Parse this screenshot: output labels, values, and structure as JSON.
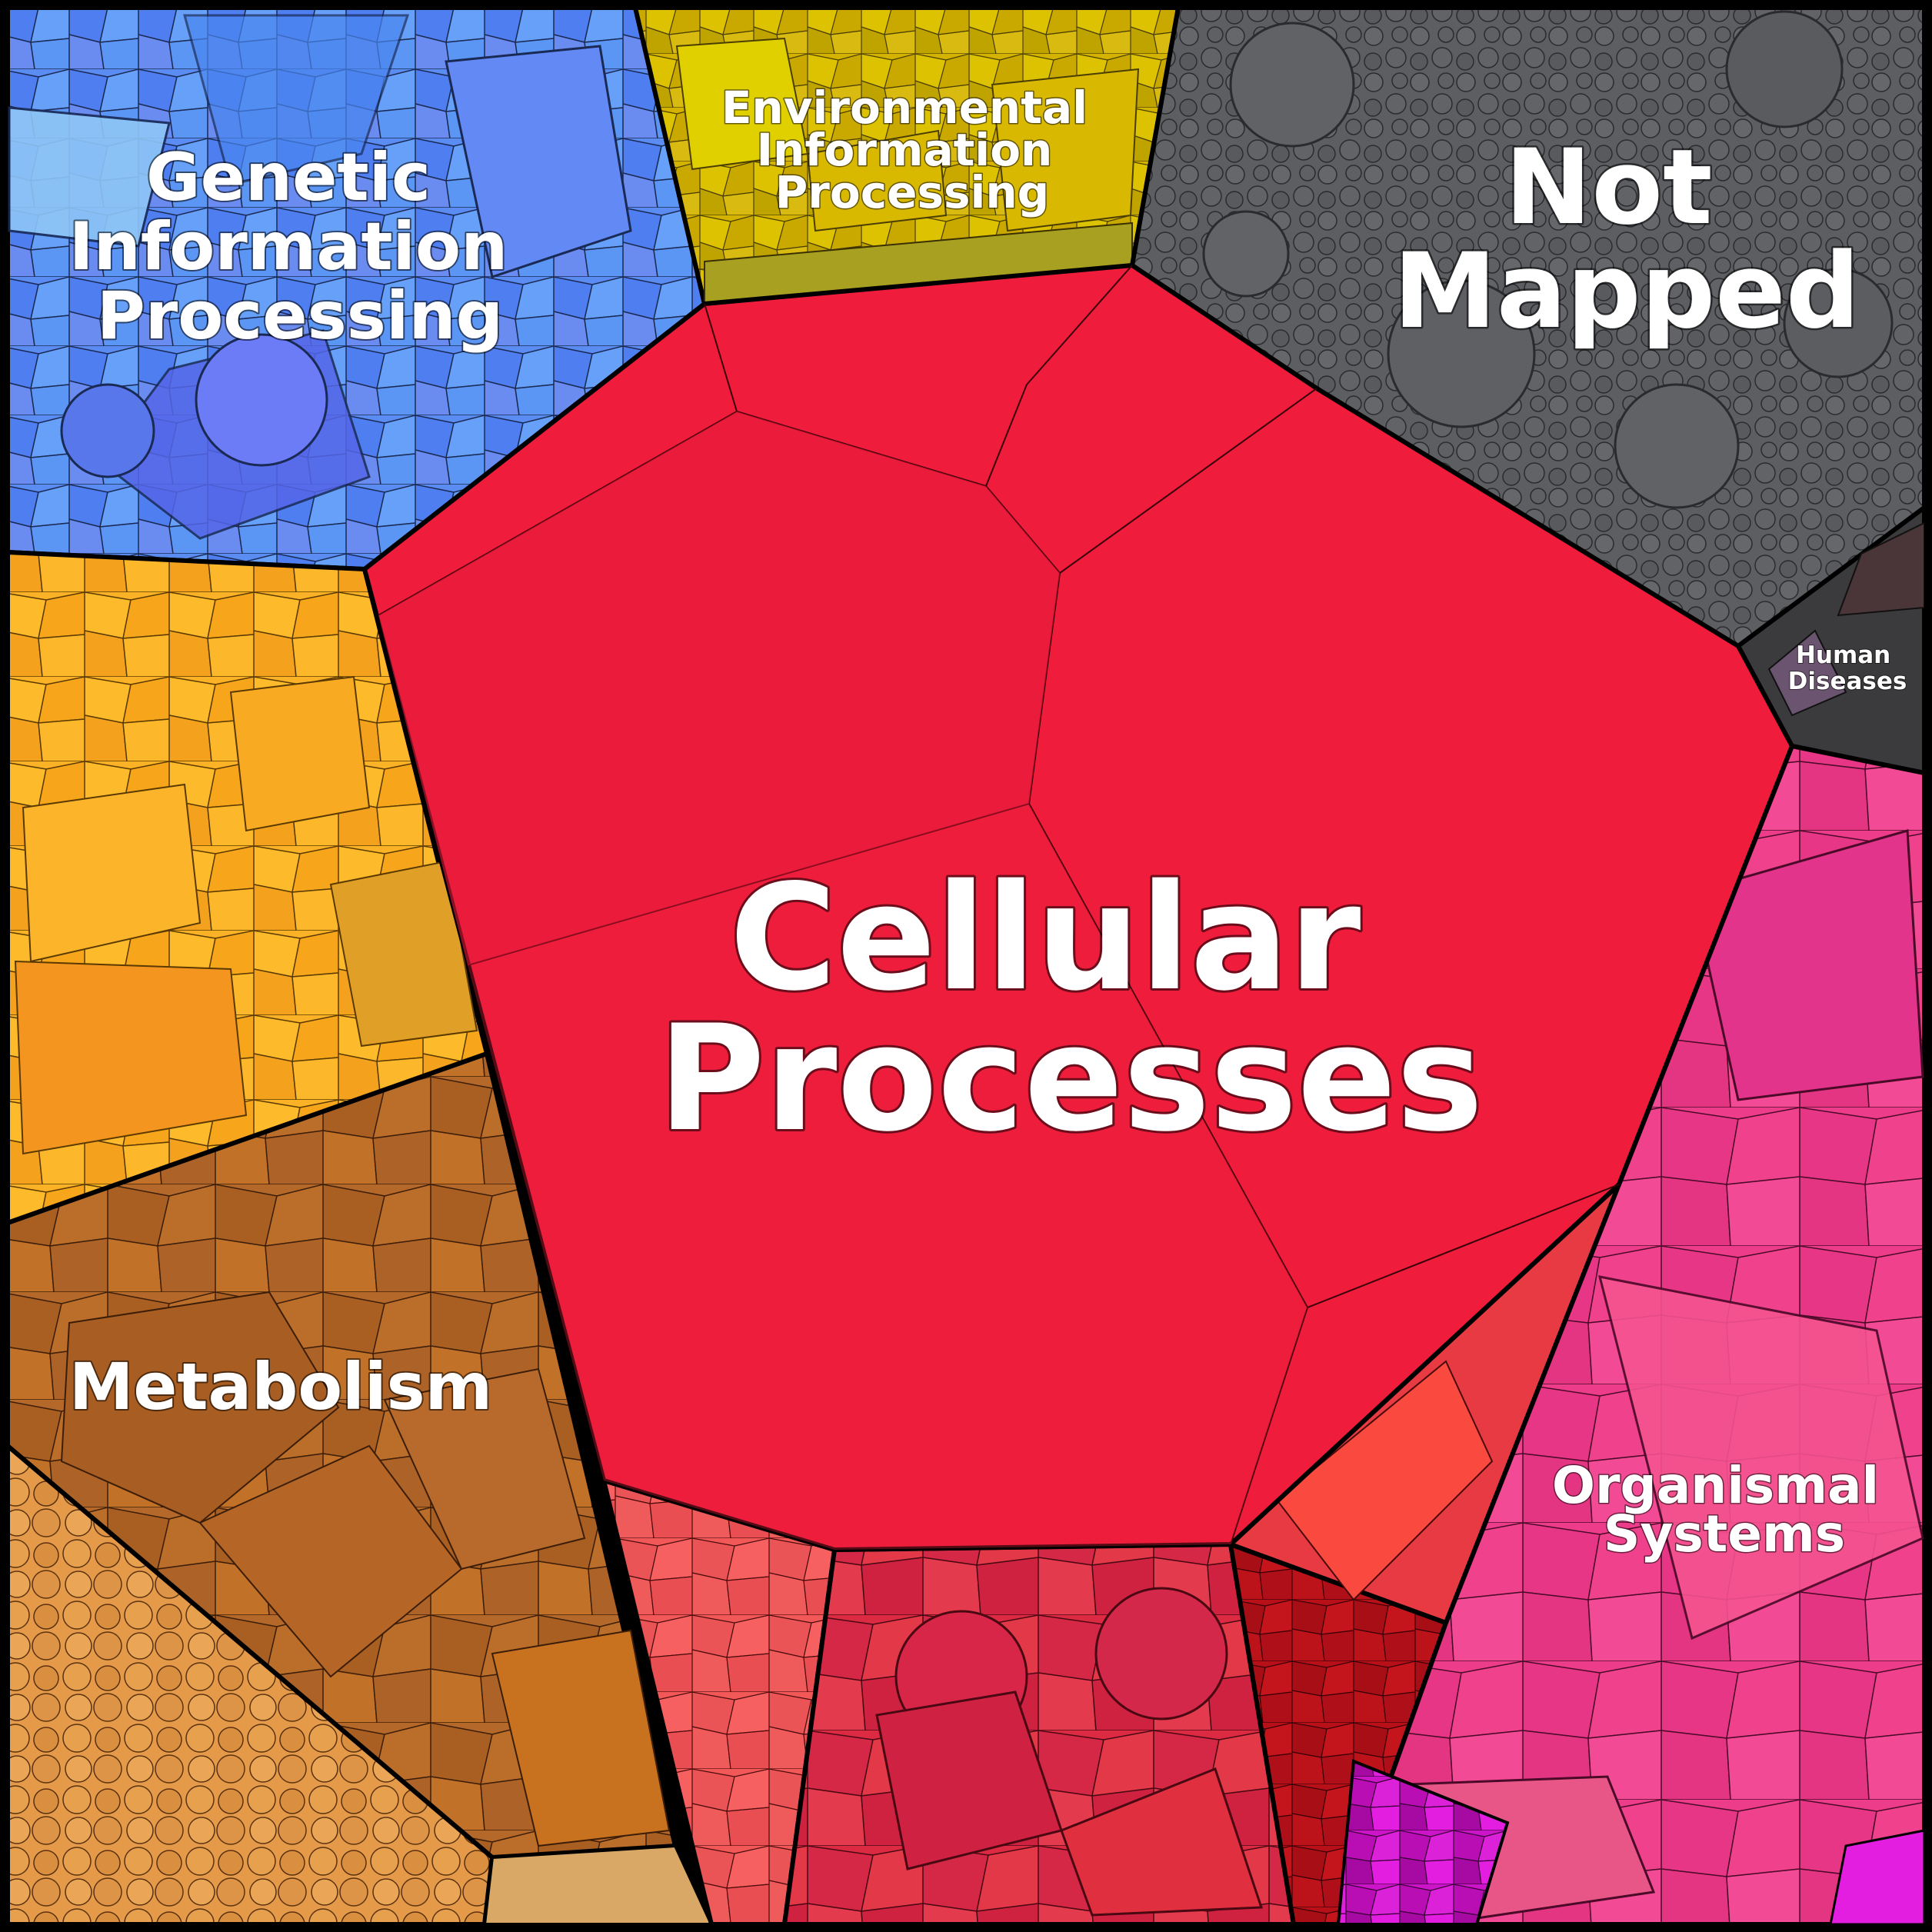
{
  "categories": {
    "cellular": {
      "label_lines": [
        "Cellular",
        "Processes"
      ],
      "color": "#ef1c3c"
    },
    "not_mapped": {
      "label_lines": [
        "Not",
        "Mapped"
      ],
      "color": "#5b5d61"
    },
    "genetic": {
      "label_lines": [
        "Genetic",
        "Information",
        "Processing"
      ],
      "color": "#5a8cf2"
    },
    "environmental": {
      "label_lines": [
        "Environmental",
        "Information",
        "Processing"
      ],
      "color": "#d2b400"
    },
    "metabolism": {
      "label_lines": [
        "Metabolism"
      ],
      "color": "#b8682a"
    },
    "organismal": {
      "label_lines": [
        "Organismal",
        "Systems"
      ],
      "color": "#ea3e8c"
    },
    "human_diseases": {
      "label_lines": [
        "Human",
        "Diseases"
      ],
      "color": "#3a3a3c"
    }
  }
}
